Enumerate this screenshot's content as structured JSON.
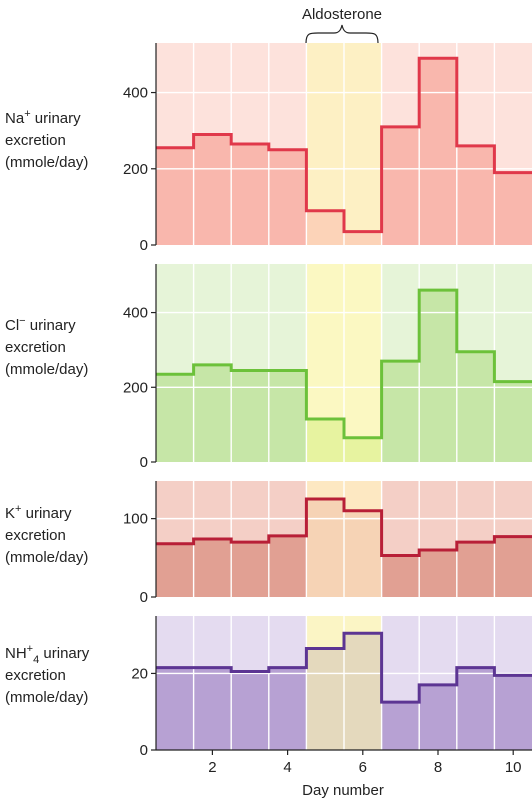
{
  "annotation": {
    "label": "Aldosterone",
    "x_range": [
      4.5,
      6.5
    ]
  },
  "xlabel": "Day number",
  "x_ticks": [
    2,
    4,
    6,
    8,
    10
  ],
  "chart_data": [
    {
      "type": "area",
      "ylabel_parts": {
        "pre": "Na",
        "sup": "+",
        "post": " urinary",
        "line2": "excretion",
        "line3": "(mmole/day)"
      },
      "ylim": [
        0,
        530
      ],
      "yticks": [
        0,
        200,
        400
      ],
      "x": [
        1,
        2,
        3,
        4,
        5,
        6,
        7,
        8,
        9,
        10
      ],
      "values": [
        255,
        290,
        265,
        250,
        90,
        35,
        310,
        490,
        260,
        190
      ],
      "colors": {
        "line": "#e0384a",
        "fill": "#f9b7ad",
        "bg": "#fde2dc",
        "band_fill": "#fcd3b8",
        "band_bg": "#fdf0c4"
      }
    },
    {
      "type": "area",
      "ylabel_parts": {
        "pre": "Cl",
        "sup": "−",
        "post": " urinary",
        "line2": "excretion",
        "line3": "(mmole/day)"
      },
      "ylim": [
        0,
        530
      ],
      "yticks": [
        0,
        200,
        400
      ],
      "x": [
        1,
        2,
        3,
        4,
        5,
        6,
        7,
        8,
        9,
        10
      ],
      "values": [
        235,
        260,
        245,
        245,
        115,
        65,
        270,
        460,
        295,
        215
      ],
      "colors": {
        "line": "#6cc13a",
        "fill": "#c6e6a7",
        "bg": "#e6f4d8",
        "band_fill": "#e7f3a0",
        "band_bg": "#fbf8c2"
      }
    },
    {
      "type": "area",
      "ylabel_parts": {
        "pre": "K",
        "sup": "+",
        "post": " urinary",
        "line2": "excretion",
        "line3": "(mmole/day)"
      },
      "ylim": [
        0,
        148
      ],
      "yticks": [
        0,
        100
      ],
      "x": [
        1,
        2,
        3,
        4,
        5,
        6,
        7,
        8,
        9,
        10
      ],
      "values": [
        68,
        74,
        70,
        78,
        125,
        110,
        53,
        60,
        70,
        77
      ],
      "colors": {
        "line": "#b81f37",
        "fill": "#e1a093",
        "bg": "#f4cfc6",
        "band_fill": "#f6d3b5",
        "band_bg": "#fde8c2"
      }
    },
    {
      "type": "area",
      "ylabel_parts": {
        "pre": "NH",
        "sup": "+",
        "sub": "4",
        "post": " urinary",
        "line2": "excretion",
        "line3": "(mmole/day)"
      },
      "ylim": [
        0,
        35
      ],
      "yticks": [
        0,
        20
      ],
      "x": [
        1,
        2,
        3,
        4,
        5,
        6,
        7,
        8,
        9,
        10
      ],
      "values": [
        21.5,
        21.5,
        20.5,
        21.5,
        26.5,
        30.5,
        12.5,
        17,
        21.5,
        19.5
      ],
      "colors": {
        "line": "#5c3593",
        "fill": "#b7a1d3",
        "bg": "#e4dbf0",
        "band_fill": "#e4d9bd",
        "band_bg": "#fbf5c5"
      }
    }
  ]
}
